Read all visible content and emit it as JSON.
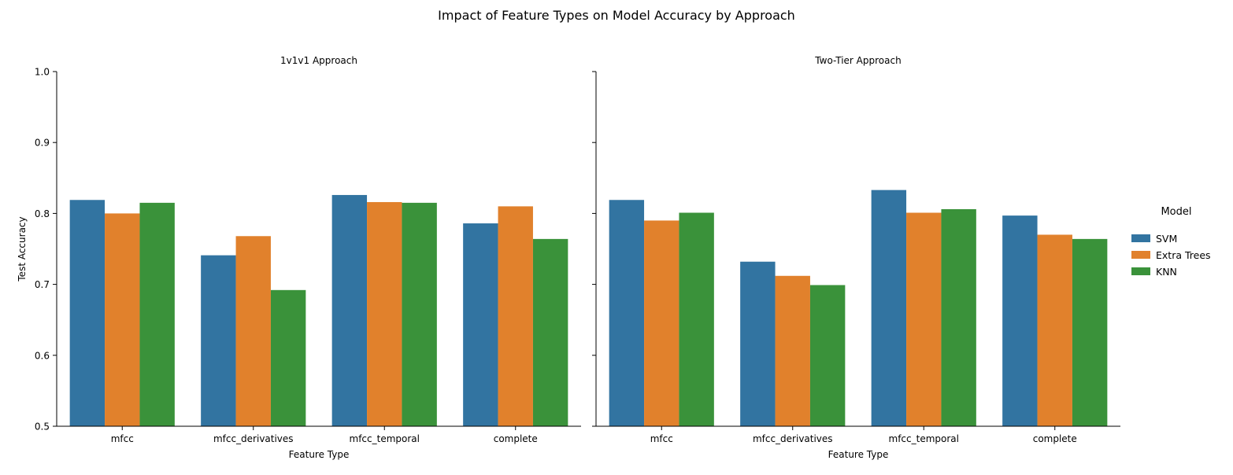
{
  "figure_title": "Impact of Feature Types on Model Accuracy by Approach",
  "legend": {
    "title": "Model",
    "placement": "right",
    "items": [
      {
        "label": "SVM",
        "color": "#3274a1"
      },
      {
        "label": "Extra Trees",
        "color": "#e1812c"
      },
      {
        "label": "KNN",
        "color": "#3a923a"
      }
    ]
  },
  "chart_data": [
    {
      "type": "bar",
      "title": "1v1v1 Approach",
      "xlabel": "Feature Type",
      "ylabel": "Test Accuracy",
      "ylim": [
        0.5,
        1.0
      ],
      "yticks": [
        "0.5",
        "0.6",
        "0.7",
        "0.8",
        "0.9",
        "1.0"
      ],
      "grid": false,
      "categories": [
        "mfcc",
        "mfcc_derivatives",
        "mfcc_temporal",
        "complete"
      ],
      "series": [
        {
          "name": "SVM",
          "values": [
            0.819,
            0.741,
            0.826,
            0.786
          ]
        },
        {
          "name": "Extra Trees",
          "values": [
            0.8,
            0.768,
            0.816,
            0.81
          ]
        },
        {
          "name": "KNN",
          "values": [
            0.815,
            0.692,
            0.815,
            0.764
          ]
        }
      ]
    },
    {
      "type": "bar",
      "title": "Two-Tier Approach",
      "xlabel": "Feature Type",
      "ylabel": "",
      "ylim": [
        0.5,
        1.0
      ],
      "yticks": [
        "0.5",
        "0.6",
        "0.7",
        "0.8",
        "0.9",
        "1.0"
      ],
      "grid": false,
      "categories": [
        "mfcc",
        "mfcc_derivatives",
        "mfcc_temporal",
        "complete"
      ],
      "series": [
        {
          "name": "SVM",
          "values": [
            0.819,
            0.732,
            0.833,
            0.797
          ]
        },
        {
          "name": "Extra Trees",
          "values": [
            0.79,
            0.712,
            0.801,
            0.77
          ]
        },
        {
          "name": "KNN",
          "values": [
            0.801,
            0.699,
            0.806,
            0.764
          ]
        }
      ]
    }
  ]
}
